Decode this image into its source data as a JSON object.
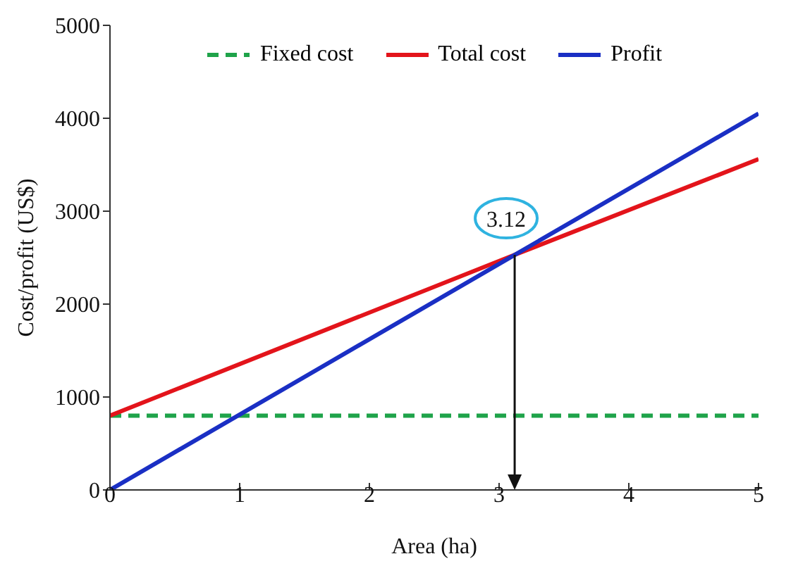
{
  "chart_data": {
    "type": "line",
    "xlabel": "Area (ha)",
    "ylabel": "Cost/profit (US$)",
    "xlim": [
      0,
      5
    ],
    "xticks": [
      0,
      1,
      2,
      3,
      4,
      5
    ],
    "ylim": [
      0,
      5000
    ],
    "yticks": [
      0,
      1000,
      2000,
      3000,
      4000,
      5000
    ],
    "grid": false,
    "legend": "top",
    "marker": "none",
    "series": [
      {
        "name": "Fixed cost",
        "color": "#1fa34a",
        "line_style": "dashed",
        "x": [
          0,
          5
        ],
        "values": [
          800,
          800
        ]
      },
      {
        "name": "Total cost",
        "color": "#e3141b",
        "line_style": "solid",
        "x": [
          0,
          3.12,
          5
        ],
        "values": [
          800,
          2530,
          3560
        ]
      },
      {
        "name": "Profit",
        "color": "#1a2fc4",
        "line_style": "solid",
        "x": [
          0,
          3.12,
          5
        ],
        "values": [
          0,
          2530,
          4050
        ]
      }
    ],
    "annotations": [
      {
        "text": "3.12",
        "x": 3.12,
        "y": 2530
      }
    ]
  }
}
